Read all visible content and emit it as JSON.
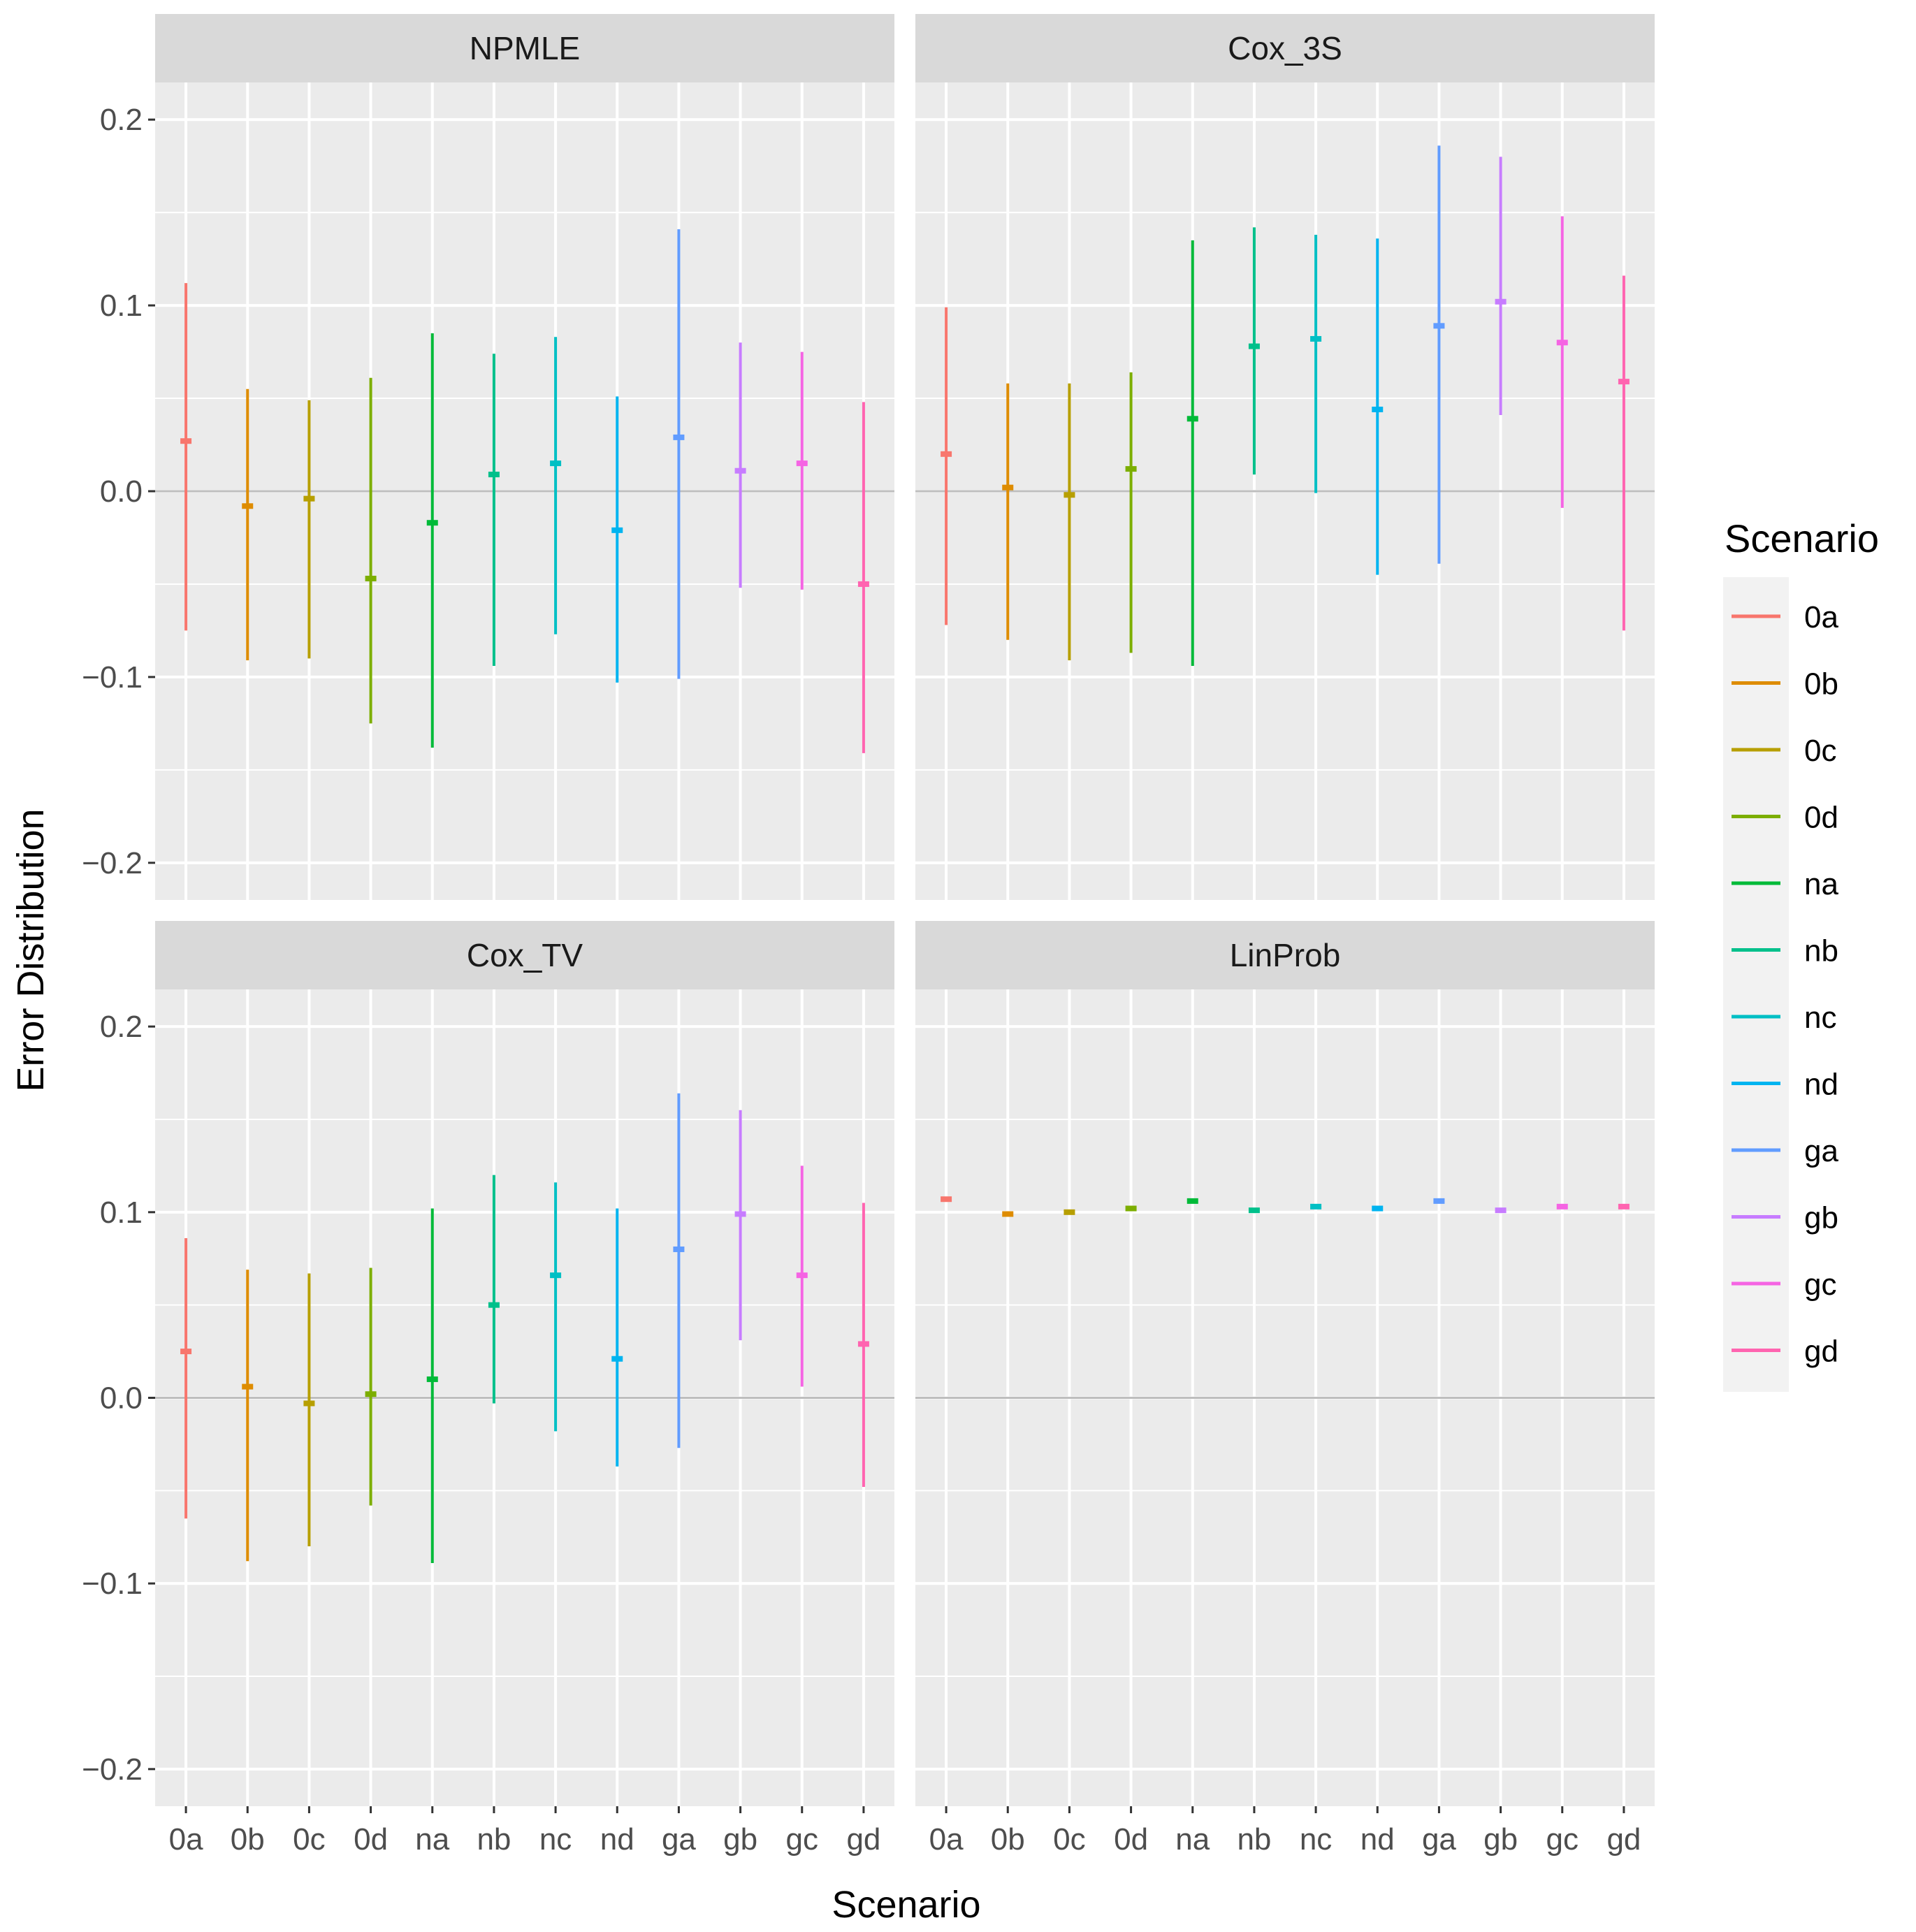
{
  "chart_data": {
    "type": "errorbar",
    "facets": [
      "NPMLE",
      "Cox_3S",
      "Cox_TV",
      "LinProb"
    ],
    "categories": [
      "0a",
      "0b",
      "0c",
      "0d",
      "na",
      "nb",
      "nc",
      "nd",
      "ga",
      "gb",
      "gc",
      "gd"
    ],
    "colors": [
      "#F8766D",
      "#DE8C00",
      "#B79F00",
      "#7CAE00",
      "#00BA38",
      "#00C08B",
      "#00BFC4",
      "#00B4F0",
      "#619CFF",
      "#C77CFF",
      "#F564E3",
      "#FF64B0"
    ],
    "xlabel": "Scenario",
    "ylabel": "Error Distribution",
    "ylim": [
      -0.22,
      0.22
    ],
    "yticks": [
      -0.2,
      -0.1,
      0.0,
      0.1,
      0.2
    ],
    "ytick_labels": [
      "−0.2",
      "−0.1",
      "0.0",
      "0.1",
      "0.2"
    ],
    "reference_line": 0.0,
    "legend_title": "Scenario",
    "legend_position": "right",
    "panels": [
      {
        "facet": "NPMLE",
        "mid": [
          0.027,
          -0.008,
          -0.004,
          -0.047,
          -0.017,
          0.009,
          0.015,
          -0.021,
          0.029,
          0.011,
          0.015,
          -0.05
        ],
        "lower": [
          -0.075,
          -0.091,
          -0.09,
          -0.125,
          -0.138,
          -0.094,
          -0.077,
          -0.103,
          -0.101,
          -0.052,
          -0.053,
          -0.141
        ],
        "upper": [
          0.112,
          0.055,
          0.049,
          0.061,
          0.085,
          0.074,
          0.083,
          0.051,
          0.141,
          0.08,
          0.075,
          0.048
        ]
      },
      {
        "facet": "Cox_3S",
        "mid": [
          0.02,
          0.002,
          -0.002,
          0.012,
          0.039,
          0.078,
          0.082,
          0.044,
          0.089,
          0.102,
          0.08,
          0.059
        ],
        "lower": [
          -0.072,
          -0.08,
          -0.091,
          -0.087,
          -0.094,
          0.009,
          -0.001,
          -0.045,
          -0.039,
          0.041,
          -0.009,
          -0.075
        ],
        "upper": [
          0.099,
          0.058,
          0.058,
          0.064,
          0.135,
          0.142,
          0.138,
          0.136,
          0.186,
          0.18,
          0.148,
          0.116
        ]
      },
      {
        "facet": "Cox_TV",
        "mid": [
          0.025,
          0.006,
          -0.003,
          0.002,
          0.01,
          0.05,
          0.066,
          0.021,
          0.08,
          0.099,
          0.066,
          0.029
        ],
        "lower": [
          -0.065,
          -0.088,
          -0.08,
          -0.058,
          -0.089,
          -0.003,
          -0.018,
          -0.037,
          -0.027,
          0.031,
          0.006,
          -0.048
        ],
        "upper": [
          0.086,
          0.069,
          0.067,
          0.07,
          0.102,
          0.12,
          0.116,
          0.102,
          0.164,
          0.155,
          0.125,
          0.105
        ]
      },
      {
        "facet": "LinProb",
        "mid": [
          0.107,
          0.099,
          0.1,
          0.102,
          0.106,
          0.101,
          0.103,
          0.102,
          0.106,
          0.101,
          0.103,
          0.103
        ],
        "lower": [
          0.106,
          0.098,
          0.099,
          0.101,
          0.105,
          0.1,
          0.102,
          0.101,
          0.105,
          0.1,
          0.102,
          0.102
        ],
        "upper": [
          0.108,
          0.1,
          0.101,
          0.103,
          0.107,
          0.102,
          0.104,
          0.103,
          0.107,
          0.102,
          0.104,
          0.104
        ]
      }
    ]
  }
}
